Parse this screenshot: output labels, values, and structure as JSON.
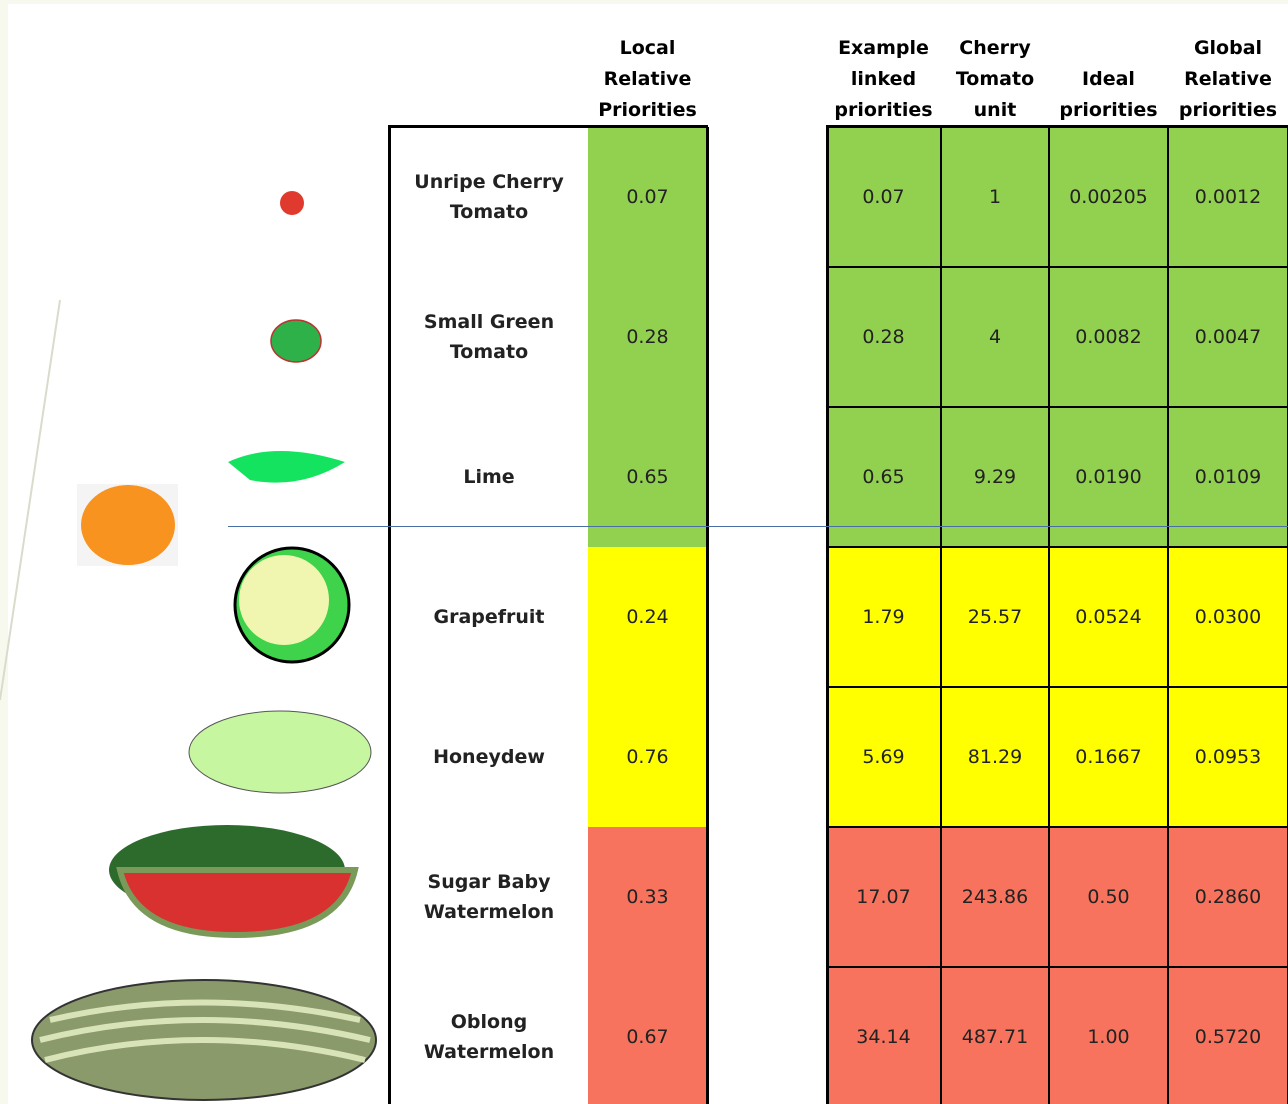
{
  "table": {
    "headers": {
      "local": "Local Relative Priorities",
      "example": "Example linked priorities",
      "cherry": "Cherry Tomato unit",
      "ideal": "Ideal priorities",
      "global": "Global Relative priorities"
    },
    "rows": [
      {
        "name": "Unripe Cherry Tomato",
        "local": "0.07",
        "example": "0.07",
        "cherry": "1",
        "ideal": "0.00205",
        "global": "0.0012",
        "color": "#92d050"
      },
      {
        "name": "Small Green Tomato",
        "local": "0.28",
        "example": "0.28",
        "cherry": "4",
        "ideal": "0.0082",
        "global": "0.0047",
        "color": "#92d050"
      },
      {
        "name": "Lime",
        "local": "0.65",
        "example": "0.65",
        "cherry": "9.29",
        "ideal": "0.0190",
        "global": "0.0109",
        "color": "#92d050"
      },
      {
        "name": "Grapefruit",
        "local": "0.24",
        "example": "1.79",
        "cherry": "25.57",
        "ideal": "0.0524",
        "global": "0.0300",
        "color": "#ffff00"
      },
      {
        "name": "Honeydew",
        "local": "0.76",
        "example": "5.69",
        "cherry": "81.29",
        "ideal": "0.1667",
        "global": "0.0953",
        "color": "#ffff00"
      },
      {
        "name": "Sugar Baby Watermelon",
        "local": "0.33",
        "example": "17.07",
        "cherry": "243.86",
        "ideal": "0.50",
        "global": "0.2860",
        "color": "#f7735d"
      },
      {
        "name": "Oblong Watermelon",
        "local": "0.67",
        "example": "34.14",
        "cherry": "487.71",
        "ideal": "1.00",
        "global": "0.5720",
        "color": "#f7735d"
      }
    ]
  }
}
